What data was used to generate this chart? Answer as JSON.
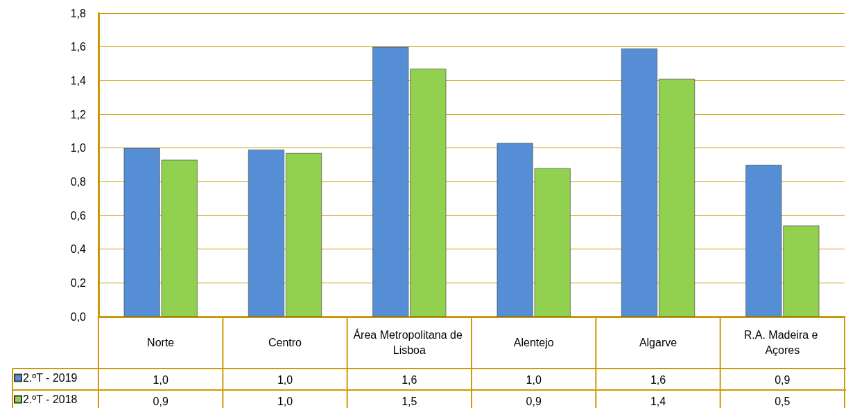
{
  "chart_data": {
    "type": "bar",
    "categories": [
      "Norte",
      "Centro",
      "Área Metropolitana de Lisboa",
      "Alentejo",
      "Algarve",
      "R.A. Madeira e Açores"
    ],
    "series": [
      {
        "name": "2.ºT - 2019",
        "color": "#558ed5",
        "values": [
          1.0,
          0.99,
          1.6,
          1.03,
          1.59,
          0.9
        ],
        "value_labels": [
          "1,0",
          "1,0",
          "1,6",
          "1,0",
          "1,6",
          "0,9"
        ]
      },
      {
        "name": "2.ºT - 2018",
        "color": "#92d050",
        "values": [
          0.93,
          0.97,
          1.47,
          0.88,
          1.41,
          0.54
        ],
        "value_labels": [
          "0,9",
          "1,0",
          "1,5",
          "0,9",
          "1,4",
          "0,5"
        ]
      }
    ],
    "ylim": [
      0,
      1.8
    ],
    "yticks": [
      {
        "value": 0,
        "label": "0,0"
      },
      {
        "value": 0.2,
        "label": "0,2"
      },
      {
        "value": 0.4,
        "label": "0,4"
      },
      {
        "value": 0.6,
        "label": "0,6"
      },
      {
        "value": 0.8,
        "label": "0,8"
      },
      {
        "value": 1.0,
        "label": "1,0"
      },
      {
        "value": 1.2,
        "label": "1,2"
      },
      {
        "value": 1.4,
        "label": "1,4"
      },
      {
        "value": 1.6,
        "label": "1,6"
      },
      {
        "value": 1.8,
        "label": "1,8"
      }
    ],
    "grid": "y",
    "legend": "bottom left"
  }
}
